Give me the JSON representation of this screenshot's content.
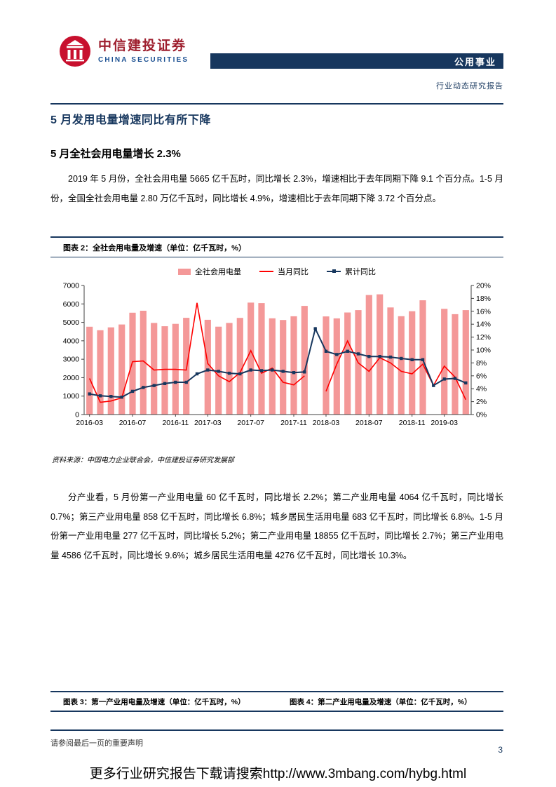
{
  "page": {
    "brand": {
      "logo_cn": "中信建投证券",
      "logo_en": "CHINA SECURITIES",
      "header_band": "公用事业",
      "report_type": "行业动态研究报告"
    },
    "section": {
      "title": "5 月发用电量增速同比有所下降",
      "subtitle": "5 月全社会用电量增长 2.3%",
      "para1": "2019 年 5 月份，全社会用电量 5665 亿千瓦时，同比增长 2.3%，增速相比于去年同期下降 9.1 个百分点。1-5 月份，全国全社会用电量 2.80 万亿千瓦时，同比增长 4.9%，增速相比于去年同期下降 3.72 个百分点。",
      "para2": "分产业看，5 月份第一产业用电量 60 亿千瓦时，同比增长 2.2%；第二产业用电量 4064 亿千瓦时，同比增长 0.7%；第三产业用电量 858 亿千瓦时，同比增长 6.8%；城乡居民生活用电量 683 亿千瓦时，同比增长 6.8%。1-5 月份第一产业用电量 277 亿千瓦时，同比增长 5.2%；第二产业用电量 18855 亿千瓦时，同比增长 2.7%；第三产业用电量 4586 亿千瓦时，同比增长 9.6%；城乡居民生活用电量 4276 亿千瓦时，同比增长 10.3%。"
    },
    "figure2": {
      "title": "图表 2：全社会用电量及增速（单位：亿千瓦时，%）",
      "source": "资料来源：中国电力企业联合会，中信建投证券研究发展部"
    },
    "figure3_title": "图表 3：第一产业用电量及增速（单位：亿千瓦时，%）",
    "figure4_title": "图表 4：第二产业用电量及增速（单位：亿千瓦时，%）",
    "footer": {
      "disclaimer": "请参阅最后一页的重要声明",
      "page_number": "3",
      "download_note": "更多行业研究报告下载请搜索http://www.3mbang.com/hybg.html"
    },
    "colors": {
      "navy": "#17375E",
      "logo_red": "#C8102E",
      "brand_text_red": "#9E1F2E"
    }
  },
  "chart_data": {
    "type": "bar",
    "title": "全社会用电量及增速（单位：亿千瓦时，%）",
    "legend": [
      "全社会用电量",
      "当月同比",
      "累计同比"
    ],
    "legend_position": "top-center",
    "grid": false,
    "x": [
      "2016-03",
      "2016-04",
      "2016-05",
      "2016-06",
      "2016-07",
      "2016-08",
      "2016-09",
      "2016-10",
      "2016-11",
      "2016-12",
      "2017-02",
      "2017-03",
      "2017-04",
      "2017-05",
      "2017-06",
      "2017-07",
      "2017-08",
      "2017-09",
      "2017-10",
      "2017-11",
      "2017-12",
      "2018-02",
      "2018-03",
      "2018-04",
      "2018-05",
      "2018-06",
      "2018-07",
      "2018-08",
      "2018-09",
      "2018-10",
      "2018-11",
      "2018-12",
      "2019-02",
      "2019-03",
      "2019-04",
      "2019-05"
    ],
    "x_ticks": [
      "2016-03",
      "2016-07",
      "2016-11",
      "2017-03",
      "2017-07",
      "2017-11",
      "2018-03",
      "2018-07",
      "2018-11",
      "2019-03"
    ],
    "left_axis": {
      "min": 0,
      "max": 7000,
      "step": 1000
    },
    "right_axis": {
      "min": 0,
      "max": 20,
      "step": 2,
      "unit": "%"
    },
    "bars": {
      "name": "全社会用电量",
      "axis": "left",
      "color": "#F49898",
      "values": [
        4762,
        4572,
        4730,
        4885,
        5523,
        5631,
        4968,
        4791,
        4919,
        5247,
        null,
        5139,
        4767,
        4968,
        5244,
        6072,
        6047,
        5219,
        5130,
        5331,
        5892,
        null,
        5323,
        5217,
        5534,
        5663,
        6484,
        6521,
        5810,
        5332,
        5605,
        6199,
        null,
        5732,
        5445,
        5665
      ]
    },
    "lines": [
      {
        "name": "当月同比",
        "axis": "right",
        "color": "#FF0000",
        "width": 1.6,
        "marker": "none",
        "values": [
          5.6,
          1.9,
          2.1,
          2.6,
          8.2,
          8.3,
          6.9,
          7.0,
          7.0,
          6.9,
          17.3,
          7.9,
          6.0,
          5.1,
          6.5,
          9.9,
          6.4,
          7.2,
          5.0,
          4.6,
          6.0,
          null,
          3.6,
          7.8,
          11.4,
          8.0,
          6.7,
          8.8,
          8.0,
          6.7,
          6.3,
          7.8,
          4.5,
          7.5,
          5.8,
          2.3
        ]
      },
      {
        "name": "累计同比",
        "axis": "right",
        "color": "#17375E",
        "width": 2,
        "marker": "square",
        "values": [
          3.2,
          2.9,
          2.8,
          2.7,
          3.6,
          4.2,
          4.5,
          4.8,
          5.0,
          5.0,
          6.3,
          6.9,
          6.7,
          6.4,
          6.3,
          6.9,
          6.8,
          6.9,
          6.7,
          6.5,
          6.6,
          13.3,
          9.8,
          9.3,
          9.8,
          9.4,
          9.0,
          9.0,
          8.9,
          8.7,
          8.5,
          8.5,
          4.5,
          5.5,
          5.6,
          4.9
        ]
      }
    ]
  }
}
